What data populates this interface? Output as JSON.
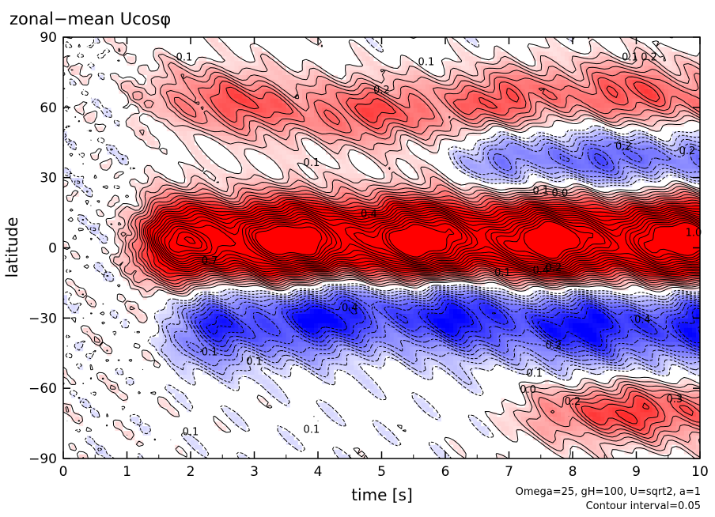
{
  "chart_data": {
    "type": "heatmap",
    "title": "zonal−mean Ucosφ",
    "xlabel": "time [s]",
    "ylabel": "latitude",
    "xlim": [
      0,
      10
    ],
    "ylim": [
      -90,
      90
    ],
    "xticks": [
      "0",
      "1",
      "2",
      "3",
      "4",
      "5",
      "6",
      "7",
      "8",
      "9",
      "10"
    ],
    "yticks": [
      "−90",
      "−60",
      "−30",
      "0",
      "30",
      "60",
      "90"
    ],
    "annotations": [
      "Omega=25, gH=100, U=sqrt2, a=1",
      "Contour interval=0.05"
    ],
    "colors": {
      "positive": "#ff0000",
      "negative": "#0000ff",
      "zero": "#ffffff"
    },
    "contour_interval": 0.05,
    "negative_contours": "dashed",
    "contour_labels": [
      {
        "t": 1.9,
        "lat": 80,
        "text": "0.1"
      },
      {
        "t": 5.7,
        "lat": 78,
        "text": "0.1"
      },
      {
        "t": 5.0,
        "lat": 66,
        "text": "0.2"
      },
      {
        "t": 8.9,
        "lat": 80,
        "text": "0.1"
      },
      {
        "t": 9.2,
        "lat": 80,
        "text": "0.2"
      },
      {
        "t": 3.9,
        "lat": 35,
        "text": "0.1"
      },
      {
        "t": 7.5,
        "lat": 23,
        "text": "0.1"
      },
      {
        "t": 7.8,
        "lat": 22,
        "text": "0.0"
      },
      {
        "t": 8.8,
        "lat": 42,
        "text": "0.2"
      },
      {
        "t": 9.8,
        "lat": 40,
        "text": "0.2"
      },
      {
        "t": 4.8,
        "lat": 13,
        "text": "0.4"
      },
      {
        "t": 9.9,
        "lat": 5,
        "text": "1.0"
      },
      {
        "t": 6.9,
        "lat": -12,
        "text": "0.1"
      },
      {
        "t": 7.5,
        "lat": -11,
        "text": "0.4"
      },
      {
        "t": 7.7,
        "lat": -10,
        "text": "0.2"
      },
      {
        "t": 2.3,
        "lat": -7,
        "text": "0.7"
      },
      {
        "t": 4.5,
        "lat": -27,
        "text": "0.4"
      },
      {
        "t": 9.1,
        "lat": -32,
        "text": "0.4"
      },
      {
        "t": 7.7,
        "lat": -43,
        "text": "0.2"
      },
      {
        "t": 7.4,
        "lat": -55,
        "text": "0.1"
      },
      {
        "t": 7.3,
        "lat": -62,
        "text": "0.0"
      },
      {
        "t": 2.3,
        "lat": -46,
        "text": "0.1"
      },
      {
        "t": 3.0,
        "lat": -50,
        "text": "0.1"
      },
      {
        "t": 2.0,
        "lat": -80,
        "text": "0.1"
      },
      {
        "t": 3.9,
        "lat": -79,
        "text": "0.1"
      },
      {
        "t": 8.0,
        "lat": -67,
        "text": "0.2"
      },
      {
        "t": 9.6,
        "lat": -66,
        "text": "0.3"
      }
    ],
    "features": [
      {
        "name": "equatorial jet",
        "t_range": [
          1.0,
          10.0
        ],
        "lat_center": 3,
        "lat_halfwidth": 12,
        "peak_value": 1.0
      },
      {
        "name": "southern subtropical negative band",
        "t_range": [
          1.5,
          10.0
        ],
        "lat_center": -30,
        "lat_halfwidth": 12,
        "peak_value": -0.45
      },
      {
        "name": "northern mid-latitude negative band",
        "t_range": [
          6.0,
          10.0
        ],
        "lat_center": 38,
        "lat_halfwidth": 9,
        "peak_value": -0.3
      },
      {
        "name": "northern positive band",
        "t_range": [
          1.0,
          10.0
        ],
        "lat_center": 62,
        "lat_halfwidth": 10,
        "peak_value": 0.3
      },
      {
        "name": "southern high-latitude positive band",
        "t_range": [
          7.0,
          10.0
        ],
        "lat_center": -70,
        "lat_halfwidth": 9,
        "peak_value": 0.35
      }
    ]
  }
}
